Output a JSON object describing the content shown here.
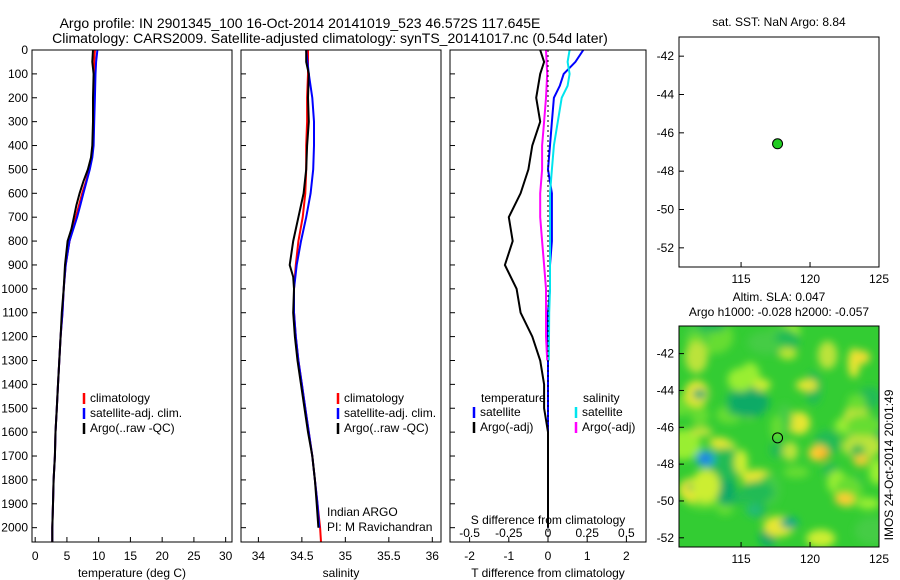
{
  "header": {
    "line1": "Argo profile: IN 2901345_100 16-Oct-2014 20141019_523 46.572S 117.645E",
    "line2": "Climatology: CARS2009. Satellite-adjusted climatology: synTS_20141017.nc (0.54d later)"
  },
  "side_label": "IMOS 24-Oct-2014 20:01:49",
  "colors": {
    "black": "#000000",
    "blue": "#0000ff",
    "red": "#ff0000",
    "cyan": "#00e5ee",
    "magenta": "#ff00ff",
    "green": "#00cc00"
  },
  "chart_data": [
    {
      "id": "temperature",
      "type": "line",
      "xlabel": "temperature (deg C)",
      "xlim": [
        -0.5,
        31
      ],
      "xticks": [
        0,
        5,
        10,
        15,
        20,
        25,
        30
      ],
      "ylim": [
        2060,
        0
      ],
      "yticks": [
        0,
        100,
        200,
        300,
        400,
        500,
        600,
        700,
        800,
        900,
        1000,
        1100,
        1200,
        1300,
        1400,
        1500,
        1600,
        1700,
        1800,
        1900,
        2000
      ],
      "legend": [
        "climatology",
        "satellite-adj. clim.",
        "Argo(..raw -QC)"
      ],
      "series": [
        {
          "name": "climatology",
          "color": "#ff0000",
          "points": [
            [
              9.4,
              0
            ],
            [
              9.3,
              50
            ],
            [
              9.3,
              100
            ],
            [
              9.2,
              200
            ],
            [
              9.2,
              300
            ],
            [
              9.1,
              400
            ],
            [
              8.9,
              450
            ],
            [
              8.5,
              500
            ],
            [
              8.0,
              550
            ],
            [
              7.4,
              600
            ],
            [
              6.9,
              650
            ],
            [
              6.4,
              700
            ],
            [
              5.9,
              750
            ],
            [
              5.4,
              800
            ],
            [
              5.1,
              850
            ],
            [
              4.8,
              900
            ],
            [
              4.5,
              1000
            ],
            [
              4.3,
              1100
            ],
            [
              4.0,
              1200
            ],
            [
              3.8,
              1300
            ],
            [
              3.6,
              1400
            ],
            [
              3.4,
              1500
            ],
            [
              3.2,
              1600
            ],
            [
              3.1,
              1700
            ],
            [
              2.9,
              1800
            ],
            [
              2.8,
              1900
            ],
            [
              2.7,
              2000
            ],
            [
              2.7,
              2060
            ]
          ]
        },
        {
          "name": "satellite-adj. clim.",
          "color": "#0000ff",
          "points": [
            [
              9.8,
              0
            ],
            [
              9.6,
              50
            ],
            [
              9.5,
              100
            ],
            [
              9.4,
              200
            ],
            [
              9.3,
              300
            ],
            [
              9.2,
              400
            ],
            [
              9.0,
              450
            ],
            [
              8.6,
              500
            ],
            [
              8.1,
              550
            ],
            [
              7.6,
              600
            ],
            [
              7.1,
              650
            ],
            [
              6.6,
              700
            ],
            [
              6.0,
              750
            ],
            [
              5.4,
              800
            ],
            [
              5.1,
              850
            ],
            [
              4.8,
              900
            ],
            [
              4.5,
              1000
            ],
            [
              4.3,
              1100
            ],
            [
              4.0,
              1200
            ],
            [
              3.8,
              1300
            ],
            [
              3.6,
              1400
            ],
            [
              3.4,
              1500
            ],
            [
              3.2,
              1600
            ],
            [
              3.1,
              1700
            ],
            [
              2.9,
              1800
            ],
            [
              2.8,
              1900
            ],
            [
              2.7,
              2000
            ],
            [
              2.7,
              2060
            ]
          ]
        },
        {
          "name": "Argo(..raw -QC)",
          "color": "#000000",
          "points": [
            [
              9.1,
              0
            ],
            [
              9.0,
              50
            ],
            [
              9.2,
              100
            ],
            [
              9.1,
              200
            ],
            [
              9.1,
              300
            ],
            [
              9.0,
              400
            ],
            [
              8.8,
              450
            ],
            [
              8.3,
              500
            ],
            [
              7.6,
              550
            ],
            [
              7.0,
              600
            ],
            [
              6.5,
              650
            ],
            [
              6.1,
              700
            ],
            [
              5.7,
              750
            ],
            [
              5.1,
              800
            ],
            [
              4.9,
              850
            ],
            [
              4.7,
              900
            ],
            [
              4.5,
              1000
            ],
            [
              4.2,
              1100
            ],
            [
              4.0,
              1200
            ],
            [
              3.8,
              1300
            ],
            [
              3.6,
              1400
            ],
            [
              3.4,
              1500
            ],
            [
              3.2,
              1600
            ],
            [
              3.1,
              1700
            ],
            [
              2.9,
              1800
            ],
            [
              2.8,
              1900
            ],
            [
              2.7,
              2000
            ],
            [
              2.7,
              2060
            ]
          ]
        }
      ]
    },
    {
      "id": "salinity",
      "type": "line",
      "xlabel": "salinity",
      "xlim": [
        33.8,
        36.1
      ],
      "xticks": [
        34,
        34.5,
        35,
        35.5,
        36
      ],
      "ylim": [
        2060,
        0
      ],
      "legend": [
        "climatology",
        "satellite-adj. clim.",
        "Argo(..raw -QC)"
      ],
      "annotation": [
        "Indian ARGO",
        "PI: M Ravichandran"
      ],
      "series": [
        {
          "name": "climatology",
          "color": "#ff0000",
          "points": [
            [
              34.57,
              0
            ],
            [
              34.57,
              100
            ],
            [
              34.56,
              200
            ],
            [
              34.56,
              300
            ],
            [
              34.55,
              400
            ],
            [
              34.55,
              500
            ],
            [
              34.54,
              600
            ],
            [
              34.51,
              700
            ],
            [
              34.46,
              800
            ],
            [
              34.43,
              900
            ],
            [
              34.41,
              1000
            ],
            [
              34.41,
              1100
            ],
            [
              34.43,
              1200
            ],
            [
              34.46,
              1300
            ],
            [
              34.5,
              1400
            ],
            [
              34.54,
              1500
            ],
            [
              34.58,
              1600
            ],
            [
              34.62,
              1700
            ],
            [
              34.65,
              1800
            ],
            [
              34.68,
              1900
            ],
            [
              34.71,
              2000
            ],
            [
              34.72,
              2060
            ]
          ]
        },
        {
          "name": "satellite-adj. clim.",
          "color": "#0000ff",
          "points": [
            [
              34.55,
              0
            ],
            [
              34.58,
              100
            ],
            [
              34.62,
              200
            ],
            [
              34.64,
              300
            ],
            [
              34.64,
              400
            ],
            [
              34.63,
              500
            ],
            [
              34.6,
              600
            ],
            [
              34.55,
              700
            ],
            [
              34.49,
              800
            ],
            [
              34.44,
              900
            ],
            [
              34.41,
              1000
            ],
            [
              34.41,
              1100
            ],
            [
              34.43,
              1200
            ],
            [
              34.46,
              1300
            ],
            [
              34.5,
              1400
            ],
            [
              34.54,
              1500
            ],
            [
              34.58,
              1600
            ],
            [
              34.62,
              1700
            ],
            [
              34.65,
              1800
            ],
            [
              34.68,
              1900
            ],
            [
              34.7,
              2000
            ]
          ]
        },
        {
          "name": "Argo(..raw -QC)",
          "color": "#000000",
          "points": [
            [
              34.55,
              0
            ],
            [
              34.55,
              50
            ],
            [
              34.58,
              100
            ],
            [
              34.57,
              200
            ],
            [
              34.58,
              300
            ],
            [
              34.56,
              400
            ],
            [
              34.55,
              500
            ],
            [
              34.52,
              600
            ],
            [
              34.46,
              700
            ],
            [
              34.4,
              800
            ],
            [
              34.36,
              900
            ],
            [
              34.4,
              950
            ],
            [
              34.41,
              1000
            ],
            [
              34.4,
              1100
            ],
            [
              34.42,
              1200
            ],
            [
              34.45,
              1300
            ],
            [
              34.49,
              1400
            ],
            [
              34.53,
              1500
            ],
            [
              34.57,
              1600
            ],
            [
              34.62,
              1700
            ],
            [
              34.65,
              1800
            ],
            [
              34.67,
              1900
            ],
            [
              34.69,
              2000
            ]
          ]
        }
      ]
    },
    {
      "id": "difference",
      "type": "line",
      "xlabel": "T difference from climatology",
      "xlabel2": "S difference from climatology",
      "xlim": [
        -2.5,
        2.5
      ],
      "xticks": [
        -2,
        -1,
        0,
        1,
        2
      ],
      "xticks2": [
        -0.5,
        -0.25,
        0,
        0.25,
        0.5
      ],
      "ylim": [
        2060,
        0
      ],
      "legend_title_left": "temperature",
      "legend_title_right": "salinity",
      "legend": [
        "satellite",
        "Argo(-adj)",
        "satellite",
        "Argo(-adj)"
      ],
      "series": [
        {
          "name": "satellite",
          "color": "#0000ff",
          "points": [
            [
              0.9,
              0
            ],
            [
              0.7,
              50
            ],
            [
              0.4,
              100
            ],
            [
              0.3,
              150
            ],
            [
              0.15,
              200
            ],
            [
              0.1,
              300
            ],
            [
              0.05,
              400
            ],
            [
              0.0,
              500
            ],
            [
              0.1,
              600
            ],
            [
              0.1,
              700
            ],
            [
              0.1,
              800
            ],
            [
              0.05,
              900
            ],
            [
              0.05,
              1000
            ],
            [
              0.0,
              1100
            ],
            [
              0.0,
              1200
            ],
            [
              0.0,
              1300
            ],
            [
              0.0,
              1400
            ],
            [
              0.0,
              1500
            ],
            [
              0.0,
              1700
            ],
            [
              0.0,
              1900
            ],
            [
              0.0,
              2000
            ]
          ]
        },
        {
          "name": "Argo(-adj)",
          "color": "#000000",
          "points": [
            [
              -0.2,
              0
            ],
            [
              -0.1,
              50
            ],
            [
              -0.2,
              100
            ],
            [
              -0.3,
              200
            ],
            [
              -0.2,
              300
            ],
            [
              -0.4,
              400
            ],
            [
              -0.5,
              500
            ],
            [
              -0.7,
              600
            ],
            [
              -1.0,
              700
            ],
            [
              -0.9,
              800
            ],
            [
              -1.1,
              900
            ],
            [
              -0.8,
              1000
            ],
            [
              -0.7,
              1100
            ],
            [
              -0.4,
              1200
            ],
            [
              -0.2,
              1300
            ],
            [
              -0.1,
              1400
            ],
            [
              -0.1,
              1500
            ],
            [
              0.0,
              1600
            ],
            [
              0.0,
              1800
            ],
            [
              0.0,
              2000
            ]
          ]
        },
        {
          "name": "satellite",
          "color": "#00e5ee",
          "points": [
            [
              0.55,
              0
            ],
            [
              0.5,
              50
            ],
            [
              0.55,
              100
            ],
            [
              0.5,
              150
            ],
            [
              0.35,
              200
            ],
            [
              0.25,
              300
            ],
            [
              0.15,
              400
            ],
            [
              0.1,
              500
            ],
            [
              0.05,
              600
            ],
            [
              0.05,
              700
            ],
            [
              0.05,
              800
            ],
            [
              0.05,
              900
            ],
            [
              0.05,
              1000
            ],
            [
              0.03,
              1100
            ],
            [
              0.02,
              1300
            ]
          ]
        },
        {
          "name": "Argo(-adj)",
          "color": "#ff00ff",
          "points": [
            [
              -0.05,
              0
            ],
            [
              -0.02,
              100
            ],
            [
              -0.05,
              200
            ],
            [
              -0.1,
              300
            ],
            [
              -0.15,
              400
            ],
            [
              -0.15,
              500
            ],
            [
              -0.2,
              600
            ],
            [
              -0.2,
              700
            ],
            [
              -0.15,
              800
            ],
            [
              -0.1,
              900
            ],
            [
              -0.05,
              1000
            ],
            [
              -0.05,
              1100
            ],
            [
              -0.05,
              1200
            ],
            [
              -0.02,
              1300
            ]
          ]
        }
      ]
    },
    {
      "id": "sst_map",
      "type": "scatter",
      "title": "sat. SST: NaN Argo: 8.84",
      "xlim": [
        110.5,
        125
      ],
      "ylim": [
        -53,
        -41
      ],
      "xticks": [
        115,
        120,
        125
      ],
      "yticks": [
        -42,
        -44,
        -46,
        -48,
        -50,
        -52
      ],
      "points": [
        [
          117.645,
          -46.572
        ]
      ]
    },
    {
      "id": "sla_map",
      "type": "heatmap",
      "title": "Altim. SLA: 0.047",
      "title2": "Argo h1000: -0.028 h2000: -0.057",
      "xlim": [
        110.5,
        125
      ],
      "ylim": [
        -52.5,
        -40.5
      ],
      "xticks": [
        115,
        120,
        125
      ],
      "yticks": [
        -42,
        -44,
        -46,
        -48,
        -50,
        -52
      ],
      "points": [
        [
          117.645,
          -46.572
        ]
      ]
    }
  ]
}
